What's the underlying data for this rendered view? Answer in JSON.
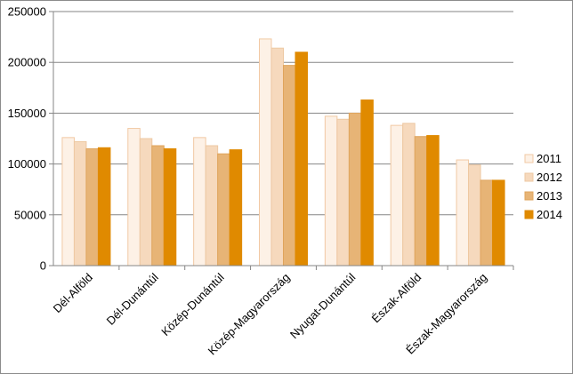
{
  "chart_data": {
    "type": "bar",
    "categories": [
      "Dél-Alföld",
      "Dél-Dunántúl",
      "Közép-Dunántúl",
      "Közép-Magyarország",
      "Nyugat-Dunántúl",
      "Észak-Alföld",
      "Észak-Magyarország"
    ],
    "series": [
      {
        "name": "2011",
        "values": [
          126000,
          135000,
          126000,
          223000,
          147000,
          138000,
          104000
        ]
      },
      {
        "name": "2012",
        "values": [
          122000,
          125000,
          118000,
          214000,
          144000,
          140000,
          99000
        ]
      },
      {
        "name": "2013",
        "values": [
          115000,
          118000,
          110000,
          197000,
          150000,
          127000,
          84000
        ]
      },
      {
        "name": "2014",
        "values": [
          116000,
          115000,
          114000,
          210000,
          163000,
          128000,
          84000
        ]
      }
    ],
    "y_ticks": [
      "0",
      "50000",
      "100000",
      "150000",
      "200000",
      "250000"
    ],
    "ylim": [
      0,
      250000
    ],
    "grid": true,
    "legend_position": "right",
    "colors": {
      "fills": [
        "#fdf1e6",
        "#f6d9bd",
        "#e7b476",
        "#e08a00"
      ],
      "strokes": [
        "#f1c9a4",
        "#edc8a2",
        "#dfa45c",
        "#e08a00"
      ],
      "grid": "#868686",
      "axis": "#868686"
    }
  }
}
